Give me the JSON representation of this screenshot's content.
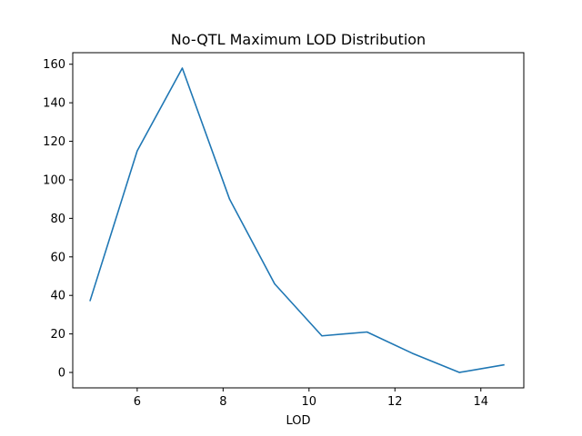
{
  "chart_data": {
    "type": "line",
    "title": "No-QTL Maximum LOD Distribution",
    "xlabel": "LOD",
    "ylabel": "",
    "xlim": [
      4.5,
      15.0
    ],
    "ylim": [
      -8,
      166
    ],
    "x_ticks": [
      6,
      8,
      10,
      12,
      14
    ],
    "y_ticks": [
      0,
      20,
      40,
      60,
      80,
      100,
      120,
      140,
      160
    ],
    "grid": false,
    "series": [
      {
        "color": "#1f77b4",
        "x": [
          4.9,
          6.0,
          7.05,
          8.15,
          9.2,
          10.3,
          11.35,
          12.4,
          13.5,
          14.55
        ],
        "y": [
          37,
          115,
          158,
          90,
          46,
          19,
          21,
          10,
          0,
          4
        ]
      }
    ]
  }
}
